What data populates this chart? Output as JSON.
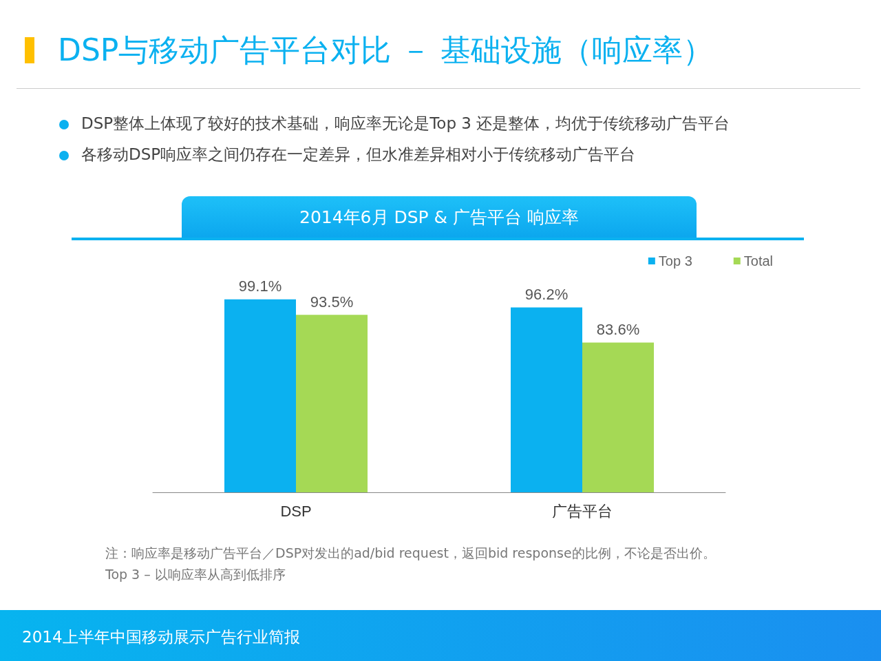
{
  "chart_data": {
    "type": "bar",
    "title": "DSP与移动广告平台对比 － 基础设施（响应率）",
    "subtitle": "2014年6月 DSP & 广告平台 响应率",
    "annotations": [
      "DSP整体上体现了较好的技术基础，响应率无论是Top 3 还是整体，均优于传统移动广告平台",
      "各移动DSP响应率之间仍存在一定差异，但水准差异相对小于传统移动广告平台",
      "注：响应率是移动广告平台／DSP对发出的ad/bid request，返回bid response的比例，不论是否出价。",
      "Top 3 – 以响应率从高到低排序",
      "2014上半年中国移动展示广告行业简报"
    ],
    "categories": [
      "DSP",
      "广告平台"
    ],
    "series": [
      {
        "name": "Top 3",
        "color": "#0bb1f0",
        "values": [
          99.1,
          96.2
        ],
        "value_labels": [
          "99.1%",
          "96.2%"
        ]
      },
      {
        "name": "Total",
        "color": "#a5d955",
        "values": [
          93.5,
          83.6
        ],
        "value_labels": [
          "93.5%",
          "83.6%"
        ]
      }
    ],
    "ylim": [
      30,
      100
    ],
    "tick_labels": "x",
    "legend": "top right"
  }
}
